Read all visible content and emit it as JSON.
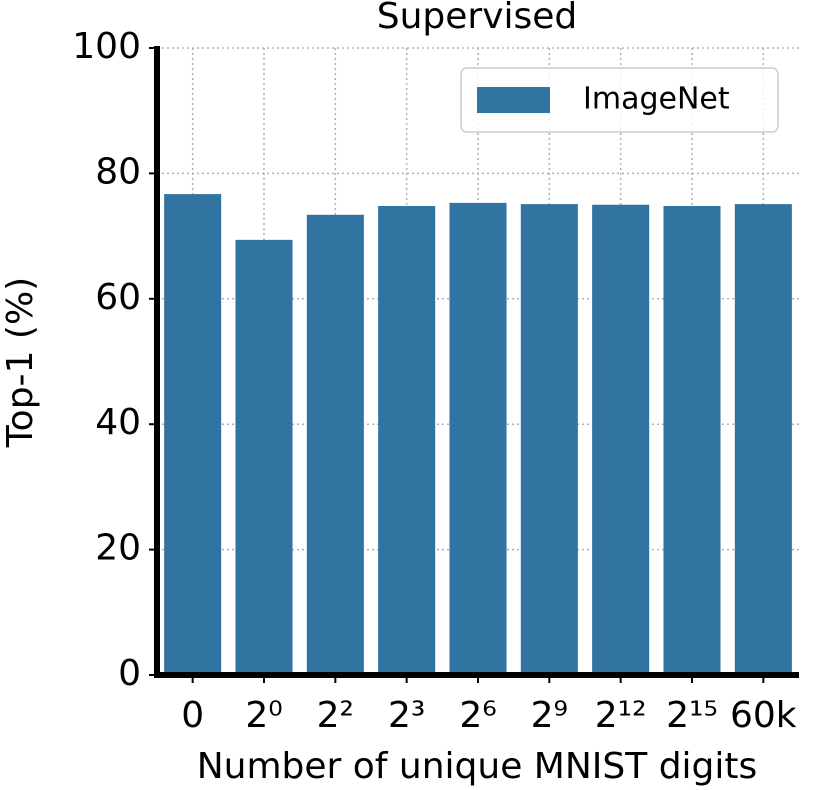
{
  "chart_data": {
    "type": "bar",
    "title": "Supervised",
    "x_label": "Number of unique MNIST digits",
    "y_label": "Top-1 (%)",
    "categories": [
      "0",
      "2⁰",
      "2²",
      "2³",
      "2⁶",
      "2⁹",
      "2¹²",
      "2¹⁵",
      "60k"
    ],
    "series": [
      {
        "name": "ImageNet",
        "color": "#3274a1",
        "values": [
          76.7,
          69.4,
          73.4,
          74.8,
          75.3,
          75.1,
          75.0,
          74.8,
          75.1
        ]
      }
    ],
    "ylim": [
      0,
      100
    ],
    "yticks": [
      0,
      20,
      40,
      60,
      80,
      100
    ],
    "grid": true,
    "legend": "upper right"
  }
}
